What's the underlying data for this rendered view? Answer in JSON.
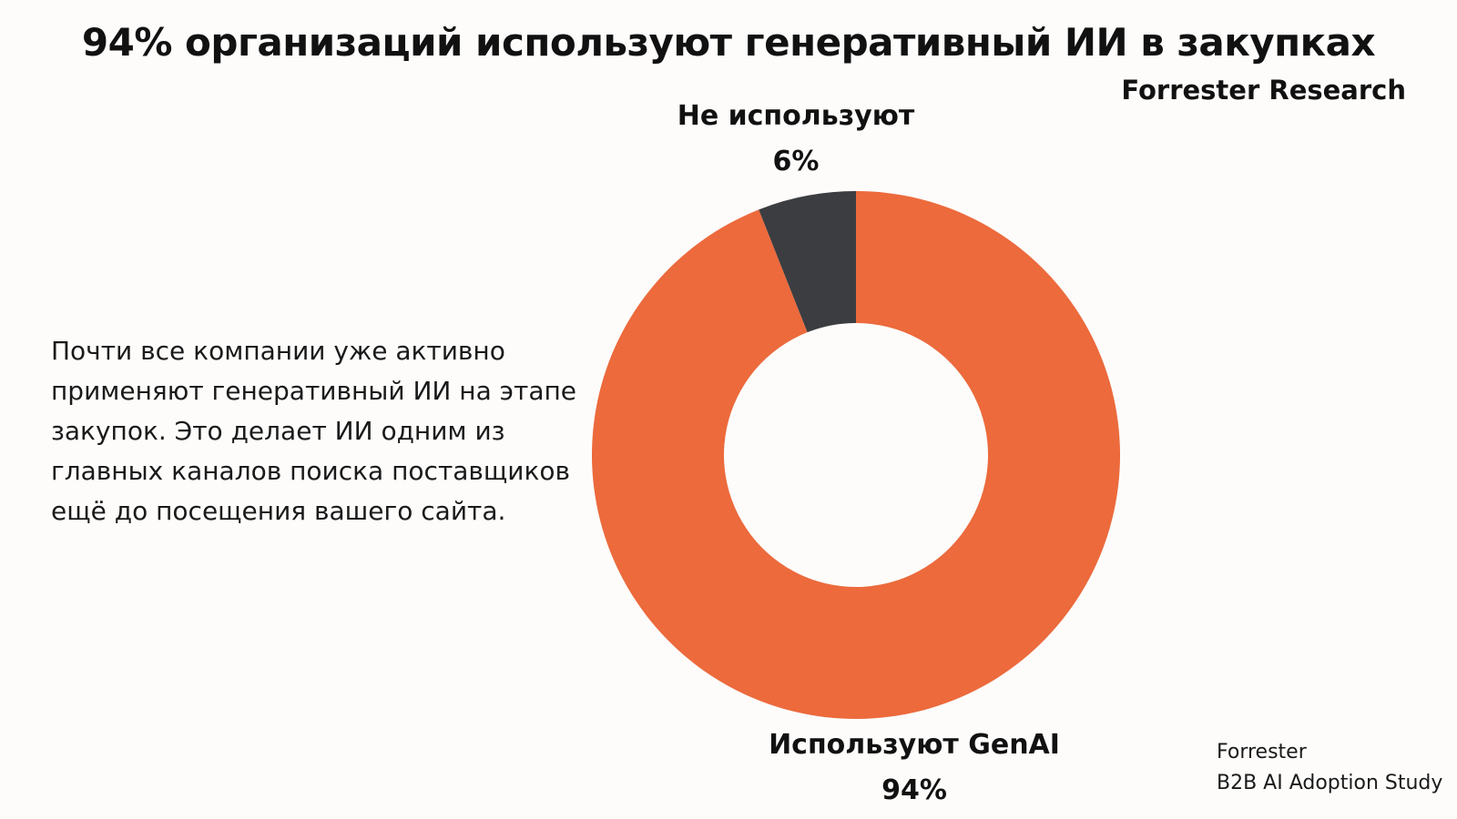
{
  "header": {
    "title": "94% организаций используют генеративный ИИ в закупках",
    "subtitle": "Forrester Research"
  },
  "description": "Почти все компании уже активно применяют генеративный ИИ на этапе закупок. Это делает ИИ одним из главных каналов поиска поставщиков ещё до посещения вашего сайта.",
  "source": {
    "line1": "Forrester",
    "line2": "B2B AI Adoption Study"
  },
  "colors": {
    "use_genai": "#ec6a3c",
    "not_use": "#3c3d41",
    "background": "#fdfcfb"
  },
  "chart_data": {
    "type": "pie",
    "title": "94% организаций используют генеративный ИИ в закупках",
    "subtitle": "Forrester Research",
    "donut": true,
    "categories": [
      "Используют GenAI",
      "Не используют"
    ],
    "values": [
      94,
      6
    ],
    "value_labels": [
      "94%",
      "6%"
    ],
    "colors": [
      "#ec6a3c",
      "#3c3d41"
    ]
  }
}
